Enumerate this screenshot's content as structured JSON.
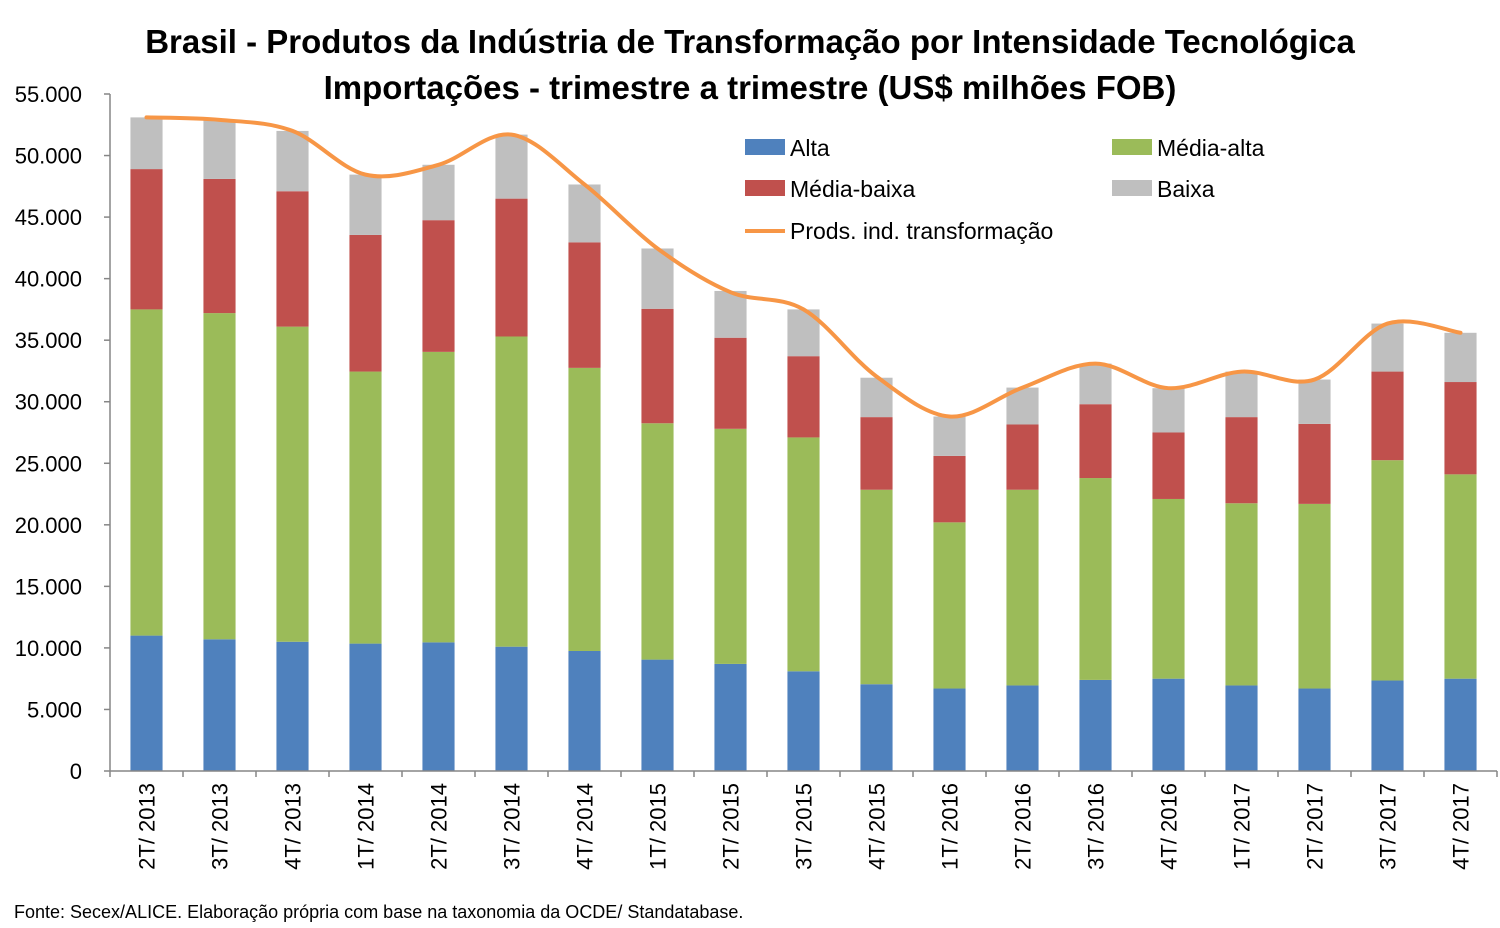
{
  "title_line1": "Brasil - Produtos da Indústria de Transformação por Intensidade Tecnológica",
  "title_line2": "Importações - trimestre a trimestre (US$ milhões FOB)",
  "source": "Fonte: Secex/ALICE. Elaboração própria com base na taxonomia da OCDE/ Standatabase.",
  "chart_data": {
    "type": "bar",
    "stacked": true,
    "categories": [
      "2T/ 2013",
      "3T/ 2013",
      "4T/ 2013",
      "1T/ 2014",
      "2T/ 2014",
      "3T/ 2014",
      "4T/ 2014",
      "1T/ 2015",
      "2T/ 2015",
      "3T/ 2015",
      "4T/ 2015",
      "1T/ 2016",
      "2T/ 2016",
      "3T/ 2016",
      "4T/ 2016",
      "1T/ 2017",
      "2T/ 2017",
      "3T/ 2017",
      "4T/ 2017"
    ],
    "ylim": [
      0,
      55000
    ],
    "yticks": [
      0,
      5000,
      10000,
      15000,
      20000,
      25000,
      30000,
      35000,
      40000,
      45000,
      50000,
      55000
    ],
    "ytick_labels": [
      "0",
      "5.000",
      "10.000",
      "15.000",
      "20.000",
      "25.000",
      "30.000",
      "35.000",
      "40.000",
      "45.000",
      "50.000",
      "55.000"
    ],
    "grid": false,
    "legend_position": "top-right",
    "series": [
      {
        "name": "Alta",
        "color": "#4F81BD",
        "values": [
          11000,
          10700,
          10500,
          10350,
          10450,
          10100,
          9750,
          9050,
          8700,
          8100,
          7050,
          6700,
          6950,
          7400,
          7500,
          6950,
          6700,
          7350,
          7500
        ]
      },
      {
        "name": "Média-alta",
        "color": "#9BBB59",
        "values": [
          26500,
          26500,
          25600,
          22100,
          23600,
          25200,
          23000,
          19200,
          19100,
          19000,
          15800,
          13500,
          15900,
          16400,
          14600,
          14800,
          15000,
          17900,
          16600
        ]
      },
      {
        "name": "Média-baixa",
        "color": "#C0504D",
        "values": [
          11400,
          10900,
          11000,
          11100,
          10700,
          11200,
          10200,
          9300,
          7400,
          6600,
          5900,
          5400,
          5300,
          6000,
          5400,
          7000,
          6500,
          7200,
          7500
        ]
      },
      {
        "name": "Baixa",
        "color": "#BFBFBF",
        "values": [
          4200,
          4800,
          4900,
          4900,
          4500,
          5200,
          4700,
          4900,
          3800,
          3800,
          3200,
          3200,
          3000,
          3300,
          3600,
          3700,
          3600,
          3900,
          4000
        ]
      }
    ],
    "line_series": {
      "name": "Prods. ind. transformação",
      "color": "#F79646",
      "values": [
        53100,
        52900,
        52000,
        48450,
        49250,
        51700,
        47650,
        42450,
        38900,
        37500,
        32050,
        28800,
        31150,
        33100,
        31100,
        32450,
        31800,
        36350,
        35600
      ]
    }
  }
}
